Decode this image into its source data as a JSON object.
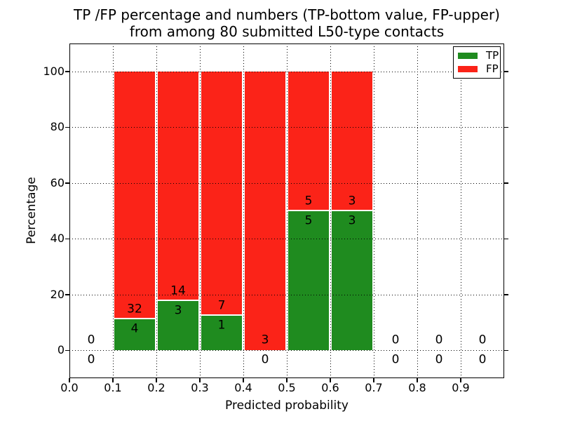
{
  "chart_data": {
    "type": "bar",
    "stacked": true,
    "title_line1": "TP /FP percentage and numbers (TP-bottom value, FP-upper)",
    "title_line2": "from among 80 submitted L50-type contacts",
    "xlabel": "Predicted probability",
    "ylabel": "Percentage",
    "xlim": [
      0.0,
      1.0
    ],
    "ylim": [
      -10,
      110
    ],
    "x_tick_values": [
      0.0,
      0.1,
      0.2,
      0.3,
      0.4,
      0.5,
      0.6,
      0.7,
      0.8,
      0.9
    ],
    "x_tick_labels": [
      "0.0",
      "0.1",
      "0.2",
      "0.3",
      "0.4",
      "0.5",
      "0.6",
      "0.7",
      "0.8",
      "0.9"
    ],
    "y_tick_values": [
      0,
      20,
      40,
      60,
      80,
      100
    ],
    "y_tick_labels": [
      "0",
      "20",
      "40",
      "60",
      "80",
      "100"
    ],
    "grid": "dotted",
    "legend": {
      "position": "upper-right",
      "items": [
        {
          "label": "TP",
          "color": "#1f8b1f"
        },
        {
          "label": "FP",
          "color": "#fb2318"
        }
      ]
    },
    "bins": [
      {
        "range": [
          0.0,
          0.1
        ],
        "tp": 0,
        "fp": 0,
        "tp_pct": 0,
        "fp_pct": 0
      },
      {
        "range": [
          0.1,
          0.2
        ],
        "tp": 4,
        "fp": 32,
        "tp_pct": 11.11,
        "fp_pct": 88.89
      },
      {
        "range": [
          0.2,
          0.3
        ],
        "tp": 3,
        "fp": 14,
        "tp_pct": 17.65,
        "fp_pct": 82.35
      },
      {
        "range": [
          0.3,
          0.4
        ],
        "tp": 1,
        "fp": 7,
        "tp_pct": 12.5,
        "fp_pct": 87.5
      },
      {
        "range": [
          0.4,
          0.5
        ],
        "tp": 0,
        "fp": 3,
        "tp_pct": 0,
        "fp_pct": 100
      },
      {
        "range": [
          0.5,
          0.6
        ],
        "tp": 5,
        "fp": 5,
        "tp_pct": 50,
        "fp_pct": 50
      },
      {
        "range": [
          0.6,
          0.7
        ],
        "tp": 3,
        "fp": 3,
        "tp_pct": 50,
        "fp_pct": 50
      },
      {
        "range": [
          0.7,
          0.8
        ],
        "tp": 0,
        "fp": 0,
        "tp_pct": 0,
        "fp_pct": 0
      },
      {
        "range": [
          0.8,
          0.9
        ],
        "tp": 0,
        "fp": 0,
        "tp_pct": 0,
        "fp_pct": 0
      },
      {
        "range": [
          0.9,
          1.0
        ],
        "tp": 0,
        "fp": 0,
        "tp_pct": 0,
        "fp_pct": 0
      }
    ]
  }
}
